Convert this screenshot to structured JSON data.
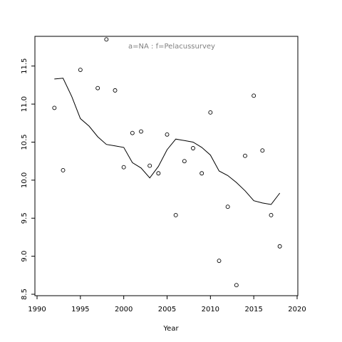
{
  "chart_data": {
    "type": "scatter",
    "title": "",
    "annotation": "a=NA  :  f=Pelacussurvey",
    "xlabel": "Year",
    "ylabel": "",
    "xlim": [
      1990,
      2020
    ],
    "ylim": [
      8.5,
      11.9
    ],
    "x_ticks": [
      1990,
      1995,
      2000,
      2005,
      2010,
      2015,
      2020
    ],
    "y_ticks": [
      8.5,
      9.0,
      9.5,
      10.0,
      10.5,
      11.0,
      11.5
    ],
    "x_tick_labels": [
      "1990",
      "1995",
      "2000",
      "2005",
      "2010",
      "2015",
      "2020"
    ],
    "y_tick_labels": [
      "8.5",
      "9.0",
      "9.5",
      "10.0",
      "10.5",
      "11.0",
      "11.5"
    ],
    "grid": false,
    "series": [
      {
        "kind": "points",
        "marker": "open-circle",
        "x": [
          1992,
          1993,
          1995,
          1997,
          1998,
          1999,
          2000,
          2001,
          2002,
          2003,
          2004,
          2005,
          2006,
          2007,
          2008,
          2009,
          2010,
          2011,
          2012,
          2013,
          2014,
          2015,
          2016,
          2017,
          2018
        ],
        "y": [
          10.95,
          10.13,
          11.45,
          11.21,
          11.85,
          11.18,
          10.17,
          10.62,
          10.64,
          10.19,
          10.09,
          10.6,
          9.54,
          10.25,
          10.42,
          10.09,
          10.89,
          8.94,
          9.65,
          8.62,
          10.32,
          11.11,
          10.39,
          9.54,
          9.13
        ]
      },
      {
        "kind": "line",
        "x": [
          1992,
          1993,
          1994,
          1995,
          1996,
          1997,
          1998,
          1999,
          2000,
          2001,
          2002,
          2003,
          2004,
          2005,
          2006,
          2007,
          2008,
          2009,
          2010,
          2011,
          2012,
          2013,
          2014,
          2015,
          2016,
          2017,
          2018
        ],
        "y": [
          11.33,
          11.34,
          11.1,
          10.81,
          10.71,
          10.57,
          10.47,
          10.45,
          10.43,
          10.23,
          10.16,
          10.03,
          10.18,
          10.4,
          10.54,
          10.52,
          10.5,
          10.43,
          10.33,
          10.12,
          10.06,
          9.97,
          9.86,
          9.73,
          9.7,
          9.68,
          9.83
        ]
      }
    ]
  }
}
